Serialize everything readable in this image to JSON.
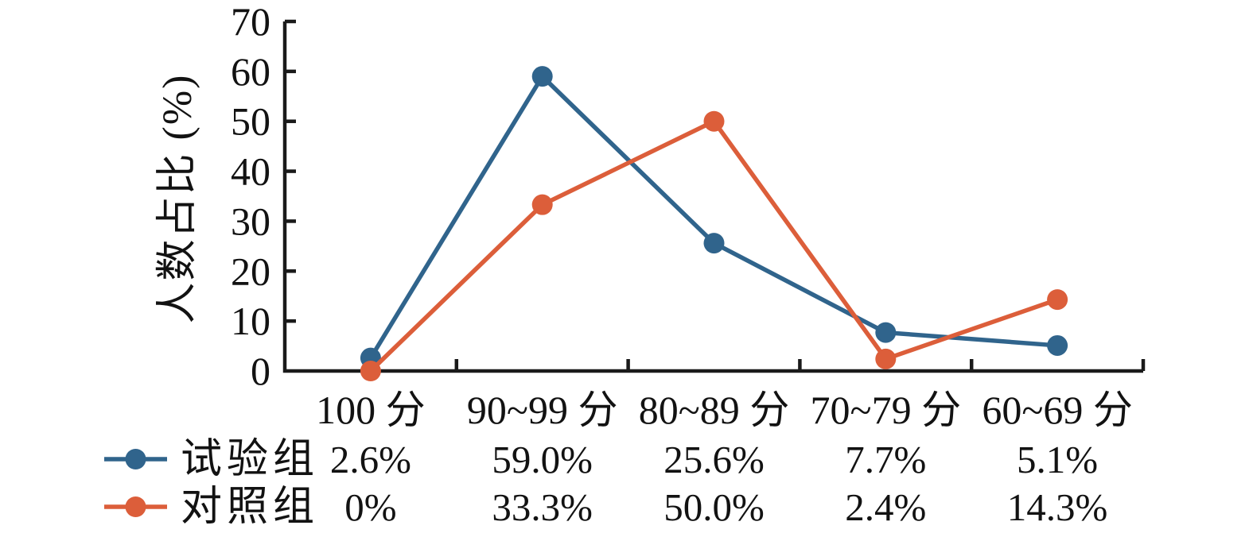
{
  "chart_data": {
    "type": "line",
    "title": "",
    "xlabel": "",
    "ylabel": "人数占比 (%)",
    "ylim": [
      0,
      70
    ],
    "yticks": [
      0,
      10,
      20,
      30,
      40,
      50,
      60,
      70
    ],
    "grid": false,
    "legend_position": "bottom-left-table",
    "categories": [
      "100 分",
      "90~99 分",
      "80~89 分",
      "70~79 分",
      "60~69 分"
    ],
    "series": [
      {
        "name": "试验组",
        "color": "#30648C",
        "values": [
          2.6,
          59.0,
          25.6,
          7.7,
          5.1
        ],
        "value_labels": [
          "2.6%",
          "59.0%",
          "25.6%",
          "7.7%",
          "5.1%"
        ]
      },
      {
        "name": "对照组",
        "color": "#DC5E3A",
        "values": [
          0,
          33.3,
          50.0,
          2.4,
          14.3
        ],
        "value_labels": [
          "0%",
          "33.3%",
          "50.0%",
          "2.4%",
          "14.3%"
        ]
      }
    ],
    "colors": {
      "axis": "#1A1A1A",
      "text": "#121212",
      "background": "#FFFFFF"
    }
  }
}
